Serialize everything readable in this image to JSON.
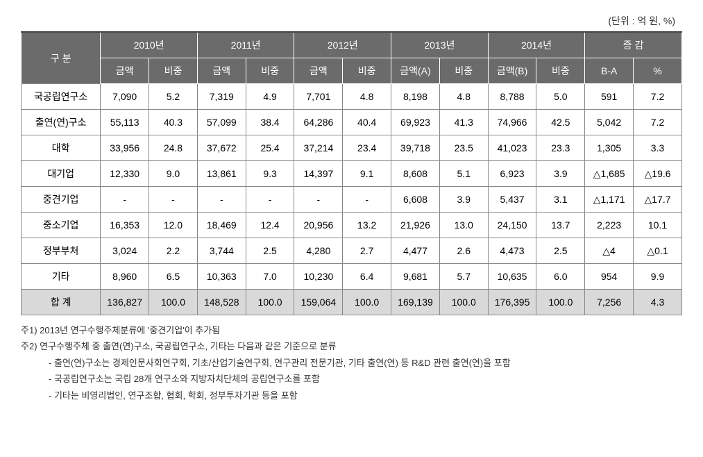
{
  "unit_label": "(단위 : 억 원, %)",
  "headers": {
    "category": "구  분",
    "years": [
      "2010년",
      "2011년",
      "2012년",
      "2013년",
      "2014년"
    ],
    "change": "증 감",
    "sub": {
      "amount": "금액",
      "ratio": "비중",
      "amountA": "금액(A)",
      "amountB": "금액(B)",
      "diff": "B-A",
      "pct": "%"
    }
  },
  "rows": [
    {
      "label": "국공립연구소",
      "cells": [
        "7,090",
        "5.2",
        "7,319",
        "4.9",
        "7,701",
        "4.8",
        "8,198",
        "4.8",
        "8,788",
        "5.0",
        "591",
        "7.2"
      ]
    },
    {
      "label": "출연(연)구소",
      "cells": [
        "55,113",
        "40.3",
        "57,099",
        "38.4",
        "64,286",
        "40.4",
        "69,923",
        "41.3",
        "74,966",
        "42.5",
        "5,042",
        "7.2"
      ]
    },
    {
      "label": "대학",
      "cells": [
        "33,956",
        "24.8",
        "37,672",
        "25.4",
        "37,214",
        "23.4",
        "39,718",
        "23.5",
        "41,023",
        "23.3",
        "1,305",
        "3.3"
      ]
    },
    {
      "label": "대기업",
      "cells": [
        "12,330",
        "9.0",
        "13,861",
        "9.3",
        "14,397",
        "9.1",
        "8,608",
        "5.1",
        "6,923",
        "3.9",
        "△1,685",
        "△19.6"
      ]
    },
    {
      "label": "중견기업",
      "cells": [
        "-",
        "-",
        "-",
        "-",
        "-",
        "-",
        "6,608",
        "3.9",
        "5,437",
        "3.1",
        "△1,171",
        "△17.7"
      ]
    },
    {
      "label": "중소기업",
      "cells": [
        "16,353",
        "12.0",
        "18,469",
        "12.4",
        "20,956",
        "13.2",
        "21,926",
        "13.0",
        "24,150",
        "13.7",
        "2,223",
        "10.1"
      ]
    },
    {
      "label": "정부부처",
      "cells": [
        "3,024",
        "2.2",
        "3,744",
        "2.5",
        "4,280",
        "2.7",
        "4,477",
        "2.6",
        "4,473",
        "2.5",
        "△4",
        "△0.1"
      ]
    },
    {
      "label": "기타",
      "cells": [
        "8,960",
        "6.5",
        "10,363",
        "7.0",
        "10,230",
        "6.4",
        "9,681",
        "5.7",
        "10,635",
        "6.0",
        "954",
        "9.9"
      ]
    },
    {
      "label": "합    계",
      "cells": [
        "136,827",
        "100.0",
        "148,528",
        "100.0",
        "159,064",
        "100.0",
        "169,139",
        "100.0",
        "176,395",
        "100.0",
        "7,256",
        "4.3"
      ]
    }
  ],
  "footnotes": [
    "주1) 2013년 연구수행주체분류에 '중견기업'이 추가됨",
    "주2) 연구수행주체 중 출연(연)구소, 국공립연구소, 기타는 다음과 같은 기준으로 분류"
  ],
  "footnotes_sub": [
    "- 출연(연)구소는 경제인문사회연구회, 기초/산업기술연구회, 연구관리 전문기관, 기타 출연(연) 등 R&D 관련 출연(연)을 포함",
    "- 국공립연구소는 국립 28개 연구소와 지방자치단체의 공립연구소를 포함",
    "- 기타는 비영리법인, 연구조합, 협회, 학회, 정부투자기관 등을 포함"
  ],
  "styling": {
    "header_bg": "#6b6b6b",
    "header_fg": "#ffffff",
    "total_row_bg": "#d9d9d9",
    "border_color": "#888888",
    "font_size_table": 14,
    "font_size_footnote": 13
  }
}
